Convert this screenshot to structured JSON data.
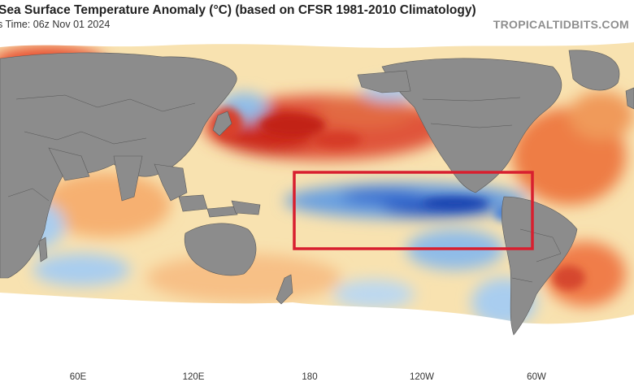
{
  "header": {
    "title": "Sea Surface Temperature Anomaly (°C) (based on CFSR 1981-2010 Climatology)",
    "subtitle": "s Time: 06z Nov 01 2024",
    "brand": "TROPICALTIDBITS.COM"
  },
  "map": {
    "projection": "equirectangular, Pacific-centered",
    "colors": {
      "land": "#8c8c8c",
      "ice": "#ffffff",
      "warm_strong": "#cc2a1e",
      "warm": "#f08a4a",
      "warm_light": "#fcd9a0",
      "neutral": "#f7f0dc",
      "cool_light": "#a9cdef",
      "cool": "#4f8edb",
      "cool_strong": "#1f4fbf",
      "highlight_box": "#d81f2f"
    },
    "highlight": "Niño 3.4 equatorial Pacific region (red box)"
  },
  "xaxis": {
    "ticks": [
      "60E",
      "120E",
      "180",
      "120W",
      "60W"
    ]
  }
}
